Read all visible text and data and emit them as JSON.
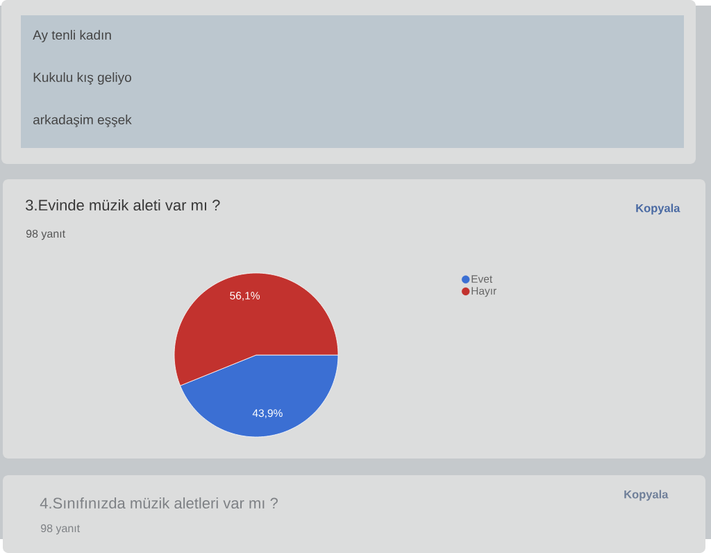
{
  "chart_data": [
    {
      "type": "other",
      "annotations": [
        "Ay tenli kadın",
        "Kukulu kış geliyo",
        "arkadaşim eşşek"
      ]
    },
    {
      "type": "pie",
      "title": "3.Evinde müzik aleti var mı ?",
      "subtitle": "98 yanıt",
      "categories": [
        "Evet",
        "Hayır"
      ],
      "values": [
        43.9,
        56.1
      ],
      "colors": [
        "#3b6fd3",
        "#c2322e"
      ],
      "value_labels": [
        "43,9%",
        "56,1%"
      ],
      "legend": "top right",
      "annotations": [
        "Kopyala"
      ]
    },
    {
      "type": "other",
      "title": "4.Sınıfınızda  müzik aletleri var mı ?",
      "subtitle": "98 yanıt",
      "annotations": [
        "Kopyala"
      ]
    }
  ]
}
